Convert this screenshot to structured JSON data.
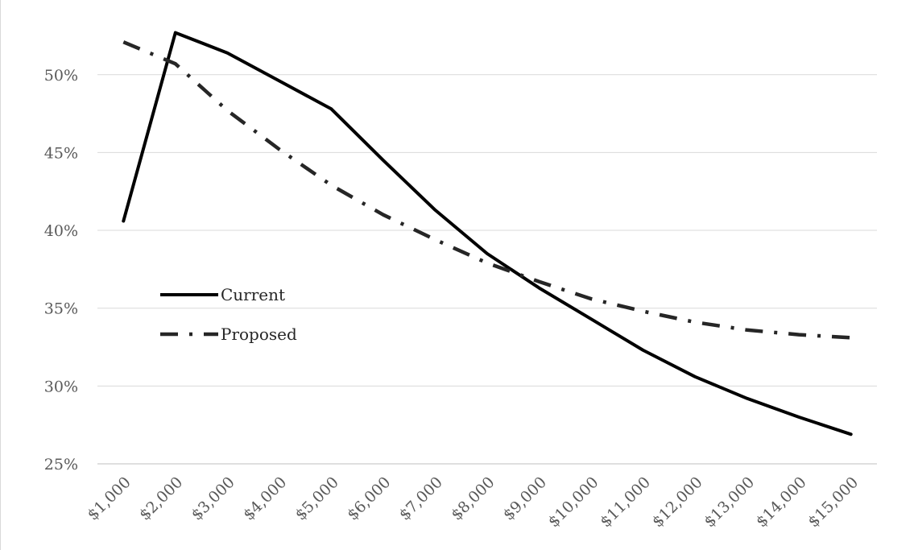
{
  "chart_data": {
    "type": "line",
    "title": "",
    "xlabel": "",
    "ylabel": "",
    "categories": [
      "$1,000",
      "$2,000",
      "$3,000",
      "$4,000",
      "$5,000",
      "$6,000",
      "$7,000",
      "$8,000",
      "$9,000",
      "$10,000",
      "$11,000",
      "$12,000",
      "$13,000",
      "$14,000",
      "$15,000"
    ],
    "y_ticks": [
      "25%",
      "30%",
      "35%",
      "40%",
      "45%",
      "50%"
    ],
    "ylim": [
      25,
      53.5
    ],
    "grid": "horizontal",
    "legend_position": "left-middle",
    "series": [
      {
        "name": "Current",
        "style": "solid",
        "color": "#000000",
        "values": [
          40.6,
          52.7,
          51.4,
          49.6,
          47.8,
          44.5,
          41.3,
          38.5,
          36.3,
          34.3,
          32.3,
          30.6,
          29.2,
          28.0,
          26.9
        ]
      },
      {
        "name": "Proposed",
        "style": "dash-dot",
        "color": "#262626",
        "values": [
          52.1,
          50.7,
          47.7,
          45.2,
          42.9,
          41.0,
          39.4,
          37.9,
          36.7,
          35.6,
          34.8,
          34.1,
          33.6,
          33.3,
          33.1
        ]
      }
    ]
  }
}
